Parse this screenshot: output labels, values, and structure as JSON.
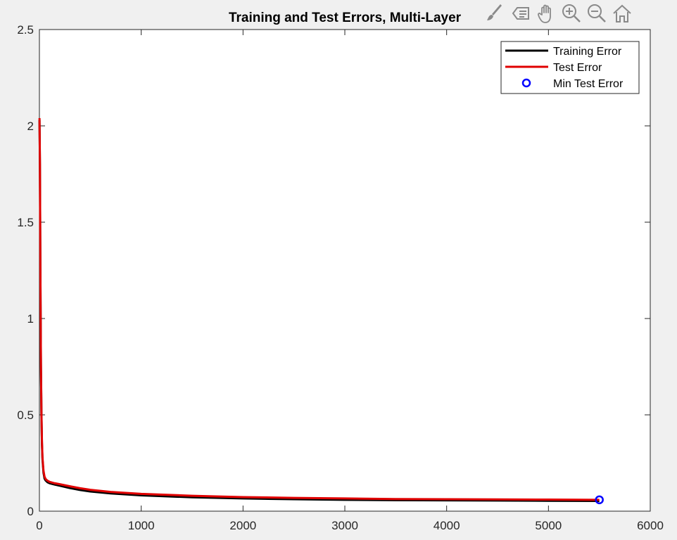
{
  "chart_data": {
    "type": "line",
    "title": "Training and Test Errors, Multi-Layer",
    "xlabel": "",
    "ylabel": "",
    "xlim": [
      0,
      6000
    ],
    "ylim": [
      0,
      2.5
    ],
    "xticks": [
      0,
      1000,
      2000,
      3000,
      4000,
      5000,
      6000
    ],
    "xtick_labels": [
      "0",
      "1000",
      "2000",
      "3000",
      "4000",
      "5000",
      "6000"
    ],
    "yticks": [
      0,
      0.5,
      1,
      1.5,
      2,
      2.5
    ],
    "ytick_labels": [
      "0",
      "0.5",
      "1",
      "1.5",
      "2",
      "2.5"
    ],
    "grid": false,
    "legend_position": "top-right",
    "series": [
      {
        "name": "Training Error",
        "color": "#000000",
        "x": [
          1,
          5,
          10,
          15,
          20,
          25,
          30,
          40,
          50,
          60,
          70,
          80,
          100,
          150,
          200,
          300,
          400,
          500,
          700,
          1000,
          1500,
          2000,
          2500,
          3000,
          3500,
          4000,
          4500,
          5000,
          5500
        ],
        "y": [
          2.03,
          1.8,
          1.2,
          0.75,
          0.5,
          0.35,
          0.27,
          0.2,
          0.17,
          0.16,
          0.155,
          0.15,
          0.145,
          0.138,
          0.132,
          0.12,
          0.11,
          0.102,
          0.092,
          0.082,
          0.072,
          0.066,
          0.062,
          0.059,
          0.057,
          0.056,
          0.055,
          0.054,
          0.053
        ]
      },
      {
        "name": "Test Error",
        "color": "#e00000",
        "x": [
          1,
          5,
          10,
          15,
          20,
          25,
          30,
          40,
          50,
          60,
          70,
          80,
          100,
          150,
          200,
          300,
          400,
          500,
          700,
          1000,
          1500,
          2000,
          2500,
          3000,
          3500,
          4000,
          4500,
          5000,
          5500
        ],
        "y": [
          2.04,
          1.81,
          1.21,
          0.76,
          0.51,
          0.36,
          0.28,
          0.21,
          0.18,
          0.168,
          0.162,
          0.158,
          0.152,
          0.145,
          0.14,
          0.129,
          0.119,
          0.111,
          0.1,
          0.09,
          0.08,
          0.073,
          0.069,
          0.066,
          0.063,
          0.062,
          0.061,
          0.06,
          0.059
        ]
      },
      {
        "name": "Min Test Error",
        "color": "#0000ff",
        "marker": "circle",
        "x": [
          5500
        ],
        "y": [
          0.059
        ]
      }
    ]
  },
  "toolbar": {
    "icons": [
      "brush-icon",
      "data-tip-icon",
      "pan-hand-icon",
      "zoom-in-icon",
      "zoom-out-icon",
      "home-icon"
    ]
  }
}
